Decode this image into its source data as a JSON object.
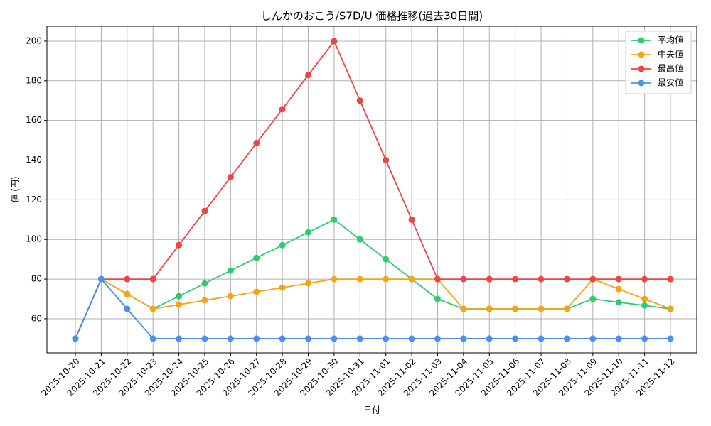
{
  "chart_data": {
    "type": "line",
    "title": "しんかのおこう/S7D/U 価格推移(過去30日間)",
    "x_label": "日付",
    "y_label": "値 (円)",
    "categories": [
      "2025-10-20",
      "2025-10-21",
      "2025-10-22",
      "2025-10-23",
      "2025-10-24",
      "2025-10-25",
      "2025-10-26",
      "2025-10-27",
      "2025-10-28",
      "2025-10-29",
      "2025-10-30",
      "2025-10-31",
      "2025-11-01",
      "2025-11-02",
      "2025-11-03",
      "2025-11-04",
      "2025-11-05",
      "2025-11-06",
      "2025-11-07",
      "2025-11-08",
      "2025-11-09",
      "2025-11-10",
      "2025-11-11",
      "2025-11-12"
    ],
    "series": [
      {
        "name": "平均値",
        "color": "#2ecc71",
        "values": [
          50,
          80,
          72.5,
          65,
          71.4,
          77.8,
          84.3,
          90.7,
          97.1,
          103.6,
          110,
          100,
          90,
          80,
          70,
          65,
          65,
          65,
          65,
          65,
          70,
          68.3,
          66.7,
          65
        ]
      },
      {
        "name": "中央値",
        "color": "#f5a511",
        "values": [
          50,
          80,
          72.5,
          65,
          67.1,
          69.3,
          71.4,
          73.6,
          75.7,
          77.9,
          80,
          80,
          80,
          80,
          80,
          65,
          65,
          65,
          65,
          65,
          80,
          75,
          70,
          65
        ]
      },
      {
        "name": "最高値",
        "color": "#ef4444",
        "values": [
          50,
          80,
          80,
          80,
          97.2,
          114.3,
          131.4,
          148.6,
          165.7,
          182.9,
          200,
          170,
          140,
          110,
          80,
          80,
          80,
          80,
          80,
          80,
          80,
          80,
          80,
          80
        ]
      },
      {
        "name": "最安値",
        "color": "#4a90f0",
        "values": [
          50,
          80,
          65,
          50,
          50,
          50,
          50,
          50,
          50,
          50,
          50,
          50,
          50,
          50,
          50,
          50,
          50,
          50,
          50,
          50,
          50,
          50,
          50,
          50
        ]
      }
    ],
    "ylim": [
      42.8,
      207.5
    ],
    "yticks": [
      60,
      80,
      100,
      120,
      140,
      160,
      180,
      200
    ],
    "grid": true,
    "legend": "upper right"
  }
}
